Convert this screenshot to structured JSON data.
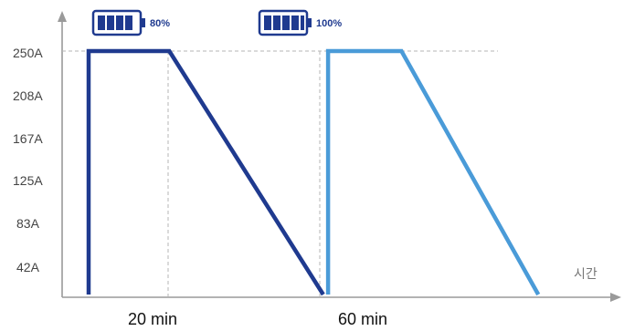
{
  "chart_data": {
    "type": "line",
    "xlabel": "시간",
    "ylabel": "",
    "ylim": [
      0,
      250
    ],
    "y_ticks": [
      "250A",
      "208A",
      "167A",
      "125A",
      "83A",
      "42A"
    ],
    "y_tick_values": [
      250,
      208,
      167,
      125,
      83,
      42
    ],
    "x_ticks": [
      "20 min",
      "60 min"
    ],
    "grid": false,
    "series": [
      {
        "color": "#1f3a8f",
        "battery_label": "80%",
        "x": [
          0,
          0,
          16.5,
          48,
          48
        ],
        "y": [
          0,
          250,
          250,
          0,
          0
        ]
      },
      {
        "color": "#4a9bd8",
        "battery_label": "100%",
        "x": [
          49,
          49,
          64,
          92
        ],
        "y": [
          0,
          250,
          250,
          0
        ]
      }
    ]
  }
}
